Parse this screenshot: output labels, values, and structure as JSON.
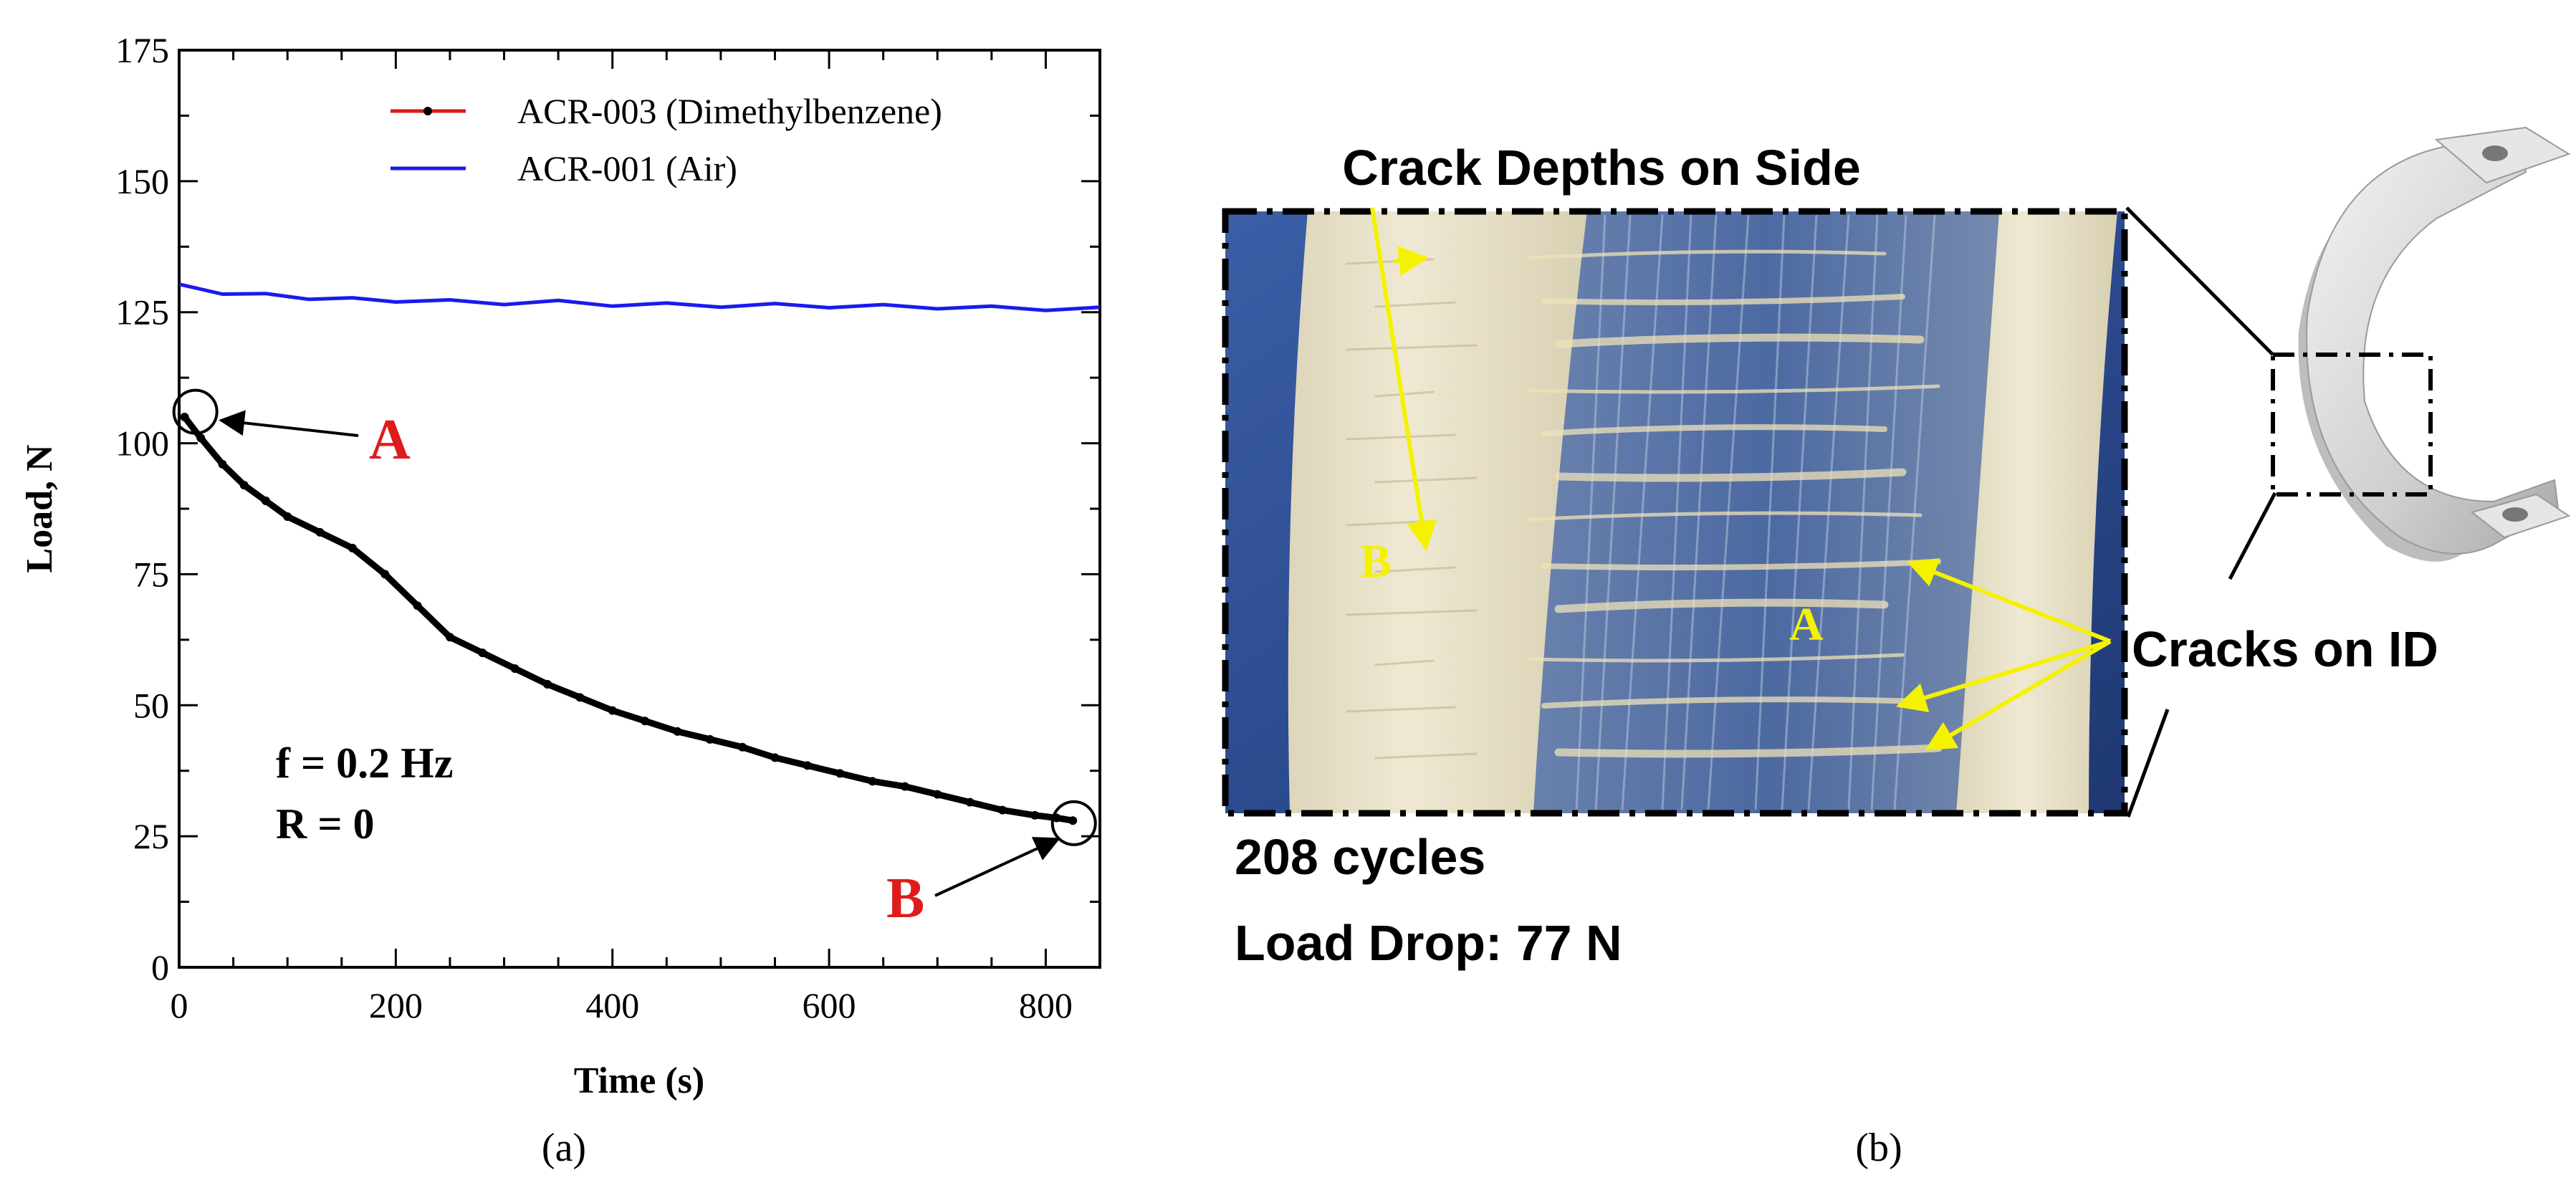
{
  "chart_data": {
    "type": "line",
    "xlabel": "Time (s)",
    "ylabel": "Load, N",
    "xlim": [
      0,
      850
    ],
    "ylim": [
      0,
      175
    ],
    "x_ticks": [
      0,
      200,
      400,
      600,
      800
    ],
    "y_ticks": [
      0,
      25,
      50,
      75,
      100,
      125,
      150,
      175
    ],
    "grid": false,
    "legend_position": "top-right",
    "series": [
      {
        "name": "ACR-003 (Dimethylbenzene)",
        "color": "#d81b1b",
        "marker_color": "#000000",
        "x": [
          5,
          20,
          40,
          60,
          80,
          100,
          130,
          160,
          190,
          220,
          250,
          280,
          310,
          340,
          370,
          400,
          430,
          460,
          490,
          520,
          550,
          580,
          610,
          640,
          670,
          700,
          730,
          760,
          790,
          810,
          825
        ],
        "y": [
          105,
          101,
          96,
          92,
          89,
          86,
          83,
          80,
          75,
          69,
          63,
          60,
          57,
          54,
          51.5,
          49,
          47,
          45,
          43.5,
          42,
          40,
          38.5,
          37,
          35.5,
          34.5,
          33,
          31.5,
          30,
          29,
          28.5,
          28
        ]
      },
      {
        "name": "ACR-001 (Air)",
        "color": "#1a1aee",
        "x": [
          0,
          40,
          80,
          120,
          160,
          200,
          250,
          300,
          350,
          400,
          450,
          500,
          550,
          600,
          650,
          700,
          750,
          800,
          850
        ],
        "y": [
          130,
          128.8,
          128.2,
          127.8,
          127.4,
          127.3,
          127,
          126.8,
          126.9,
          126.5,
          126.4,
          126.3,
          126.3,
          126.2,
          126.1,
          126,
          125.8,
          125.7,
          125.6
        ]
      }
    ],
    "annotations": {
      "point_a": {
        "label": "A",
        "x": 15,
        "y": 106
      },
      "point_b": {
        "label": "B",
        "x": 826,
        "y": 27.5
      },
      "conditions": [
        "f = 0.2 Hz",
        "R = 0"
      ]
    },
    "panel_label": "(a)"
  },
  "photo_panel": {
    "title": "Crack Depths on Side",
    "marker_a": "A",
    "marker_b": "B",
    "cracks_label": "Cracks on ID",
    "cycles": "208 cycles",
    "load_drop": "Load Drop: 77 N",
    "panel_label": "(b)",
    "colors": {
      "arrow": "#f5f200",
      "background": "#2b4a8a",
      "specimen": "#e7e0c6"
    }
  }
}
